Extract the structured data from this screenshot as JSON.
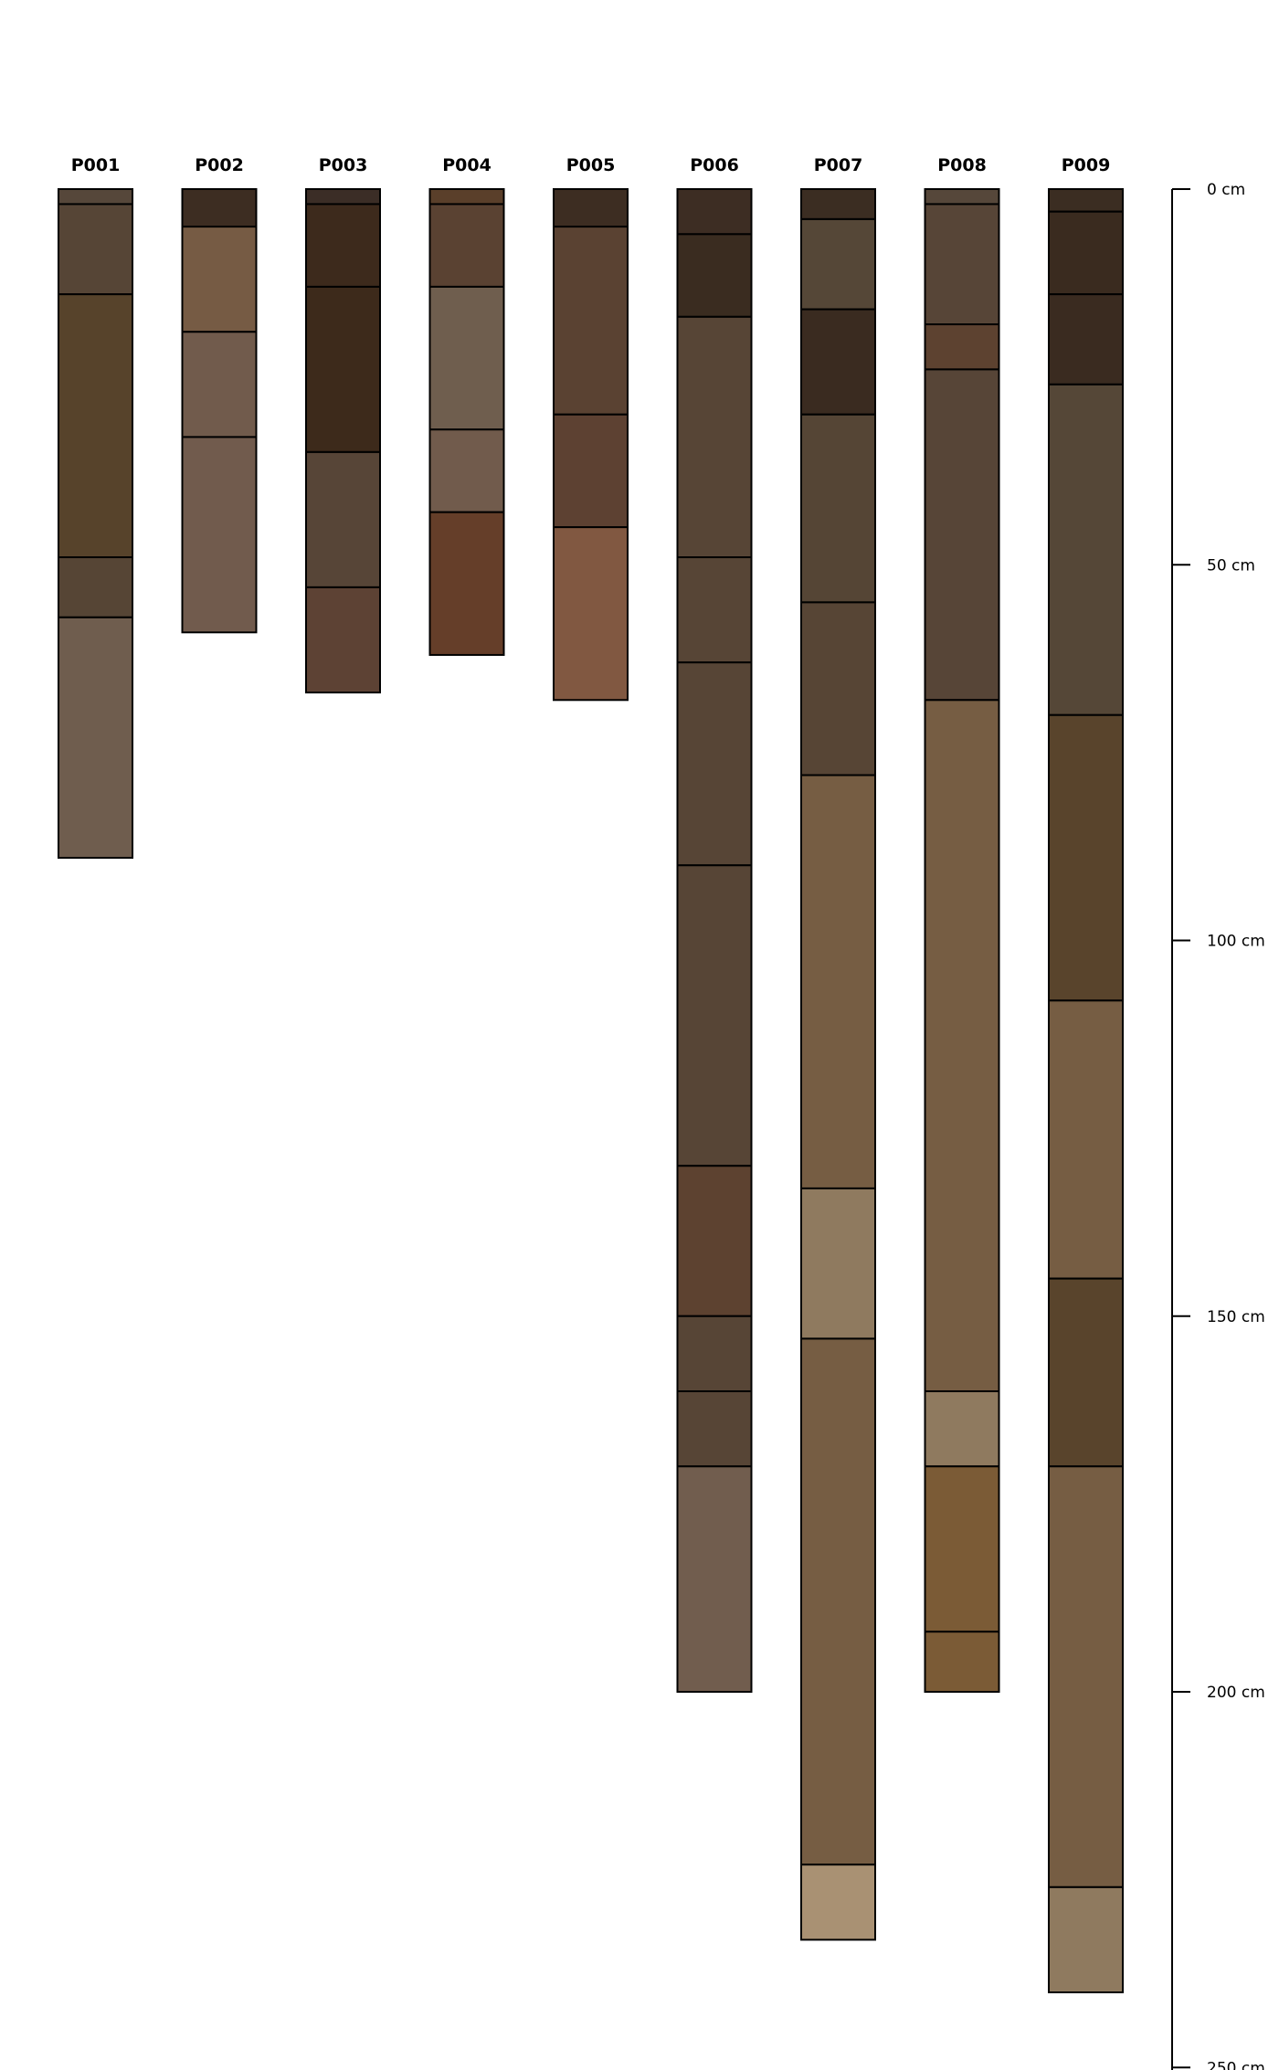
{
  "chart_data": {
    "type": "soil_profile_sketch",
    "depth_unit": "cm",
    "depth_axis": {
      "ticks": [
        0,
        50,
        100,
        150,
        200,
        250
      ],
      "tick_labels": [
        "0 cm",
        "50 cm",
        "100 cm",
        "150 cm",
        "200 cm",
        "250 cm"
      ],
      "range": [
        0,
        250
      ]
    },
    "profiles": [
      {
        "id": "P001",
        "horizons": [
          {
            "top": 0,
            "bottom": 2,
            "color": "#56473a"
          },
          {
            "top": 2,
            "bottom": 14,
            "color": "#564536"
          },
          {
            "top": 14,
            "bottom": 49,
            "color": "#57432b"
          },
          {
            "top": 49,
            "bottom": 57,
            "color": "#564535"
          },
          {
            "top": 57,
            "bottom": 89,
            "color": "#6f5d4e"
          }
        ]
      },
      {
        "id": "P002",
        "horizons": [
          {
            "top": 0,
            "bottom": 5,
            "color": "#3d2d22"
          },
          {
            "top": 5,
            "bottom": 19,
            "color": "#765b44"
          },
          {
            "top": 19,
            "bottom": 33,
            "color": "#715b4c"
          },
          {
            "top": 33,
            "bottom": 59,
            "color": "#715b4d"
          }
        ]
      },
      {
        "id": "P003",
        "horizons": [
          {
            "top": 0,
            "bottom": 2,
            "color": "#3b2d26"
          },
          {
            "top": 2,
            "bottom": 13,
            "color": "#3d2a1c"
          },
          {
            "top": 13,
            "bottom": 35,
            "color": "#3d2a1b"
          },
          {
            "top": 35,
            "bottom": 53,
            "color": "#574537"
          },
          {
            "top": 53,
            "bottom": 67,
            "color": "#5d4234"
          }
        ]
      },
      {
        "id": "P004",
        "horizons": [
          {
            "top": 0,
            "bottom": 2,
            "color": "#5a3f2a"
          },
          {
            "top": 2,
            "bottom": 13,
            "color": "#5a4232"
          },
          {
            "top": 13,
            "bottom": 32,
            "color": "#6f5e4e"
          },
          {
            "top": 32,
            "bottom": 43,
            "color": "#715b4c"
          },
          {
            "top": 43,
            "bottom": 62,
            "color": "#653e29"
          }
        ]
      },
      {
        "id": "P005",
        "horizons": [
          {
            "top": 0,
            "bottom": 5,
            "color": "#3d2d22"
          },
          {
            "top": 5,
            "bottom": 30,
            "color": "#5a4232"
          },
          {
            "top": 30,
            "bottom": 45,
            "color": "#5d4132"
          },
          {
            "top": 45,
            "bottom": 68,
            "color": "#815841"
          }
        ]
      },
      {
        "id": "P006",
        "horizons": [
          {
            "top": 0,
            "bottom": 6,
            "color": "#3d2d23"
          },
          {
            "top": 6,
            "bottom": 17,
            "color": "#3a2c20"
          },
          {
            "top": 17,
            "bottom": 49,
            "color": "#574536"
          },
          {
            "top": 49,
            "bottom": 63,
            "color": "#574536"
          },
          {
            "top": 63,
            "bottom": 90,
            "color": "#574536"
          },
          {
            "top": 90,
            "bottom": 130,
            "color": "#574536"
          },
          {
            "top": 130,
            "bottom": 150,
            "color": "#5d4230"
          },
          {
            "top": 150,
            "bottom": 160,
            "color": "#574536"
          },
          {
            "top": 160,
            "bottom": 170,
            "color": "#574536"
          },
          {
            "top": 170,
            "bottom": 200,
            "color": "#715d4e"
          }
        ]
      },
      {
        "id": "P007",
        "horizons": [
          {
            "top": 0,
            "bottom": 4,
            "color": "#3b2d22"
          },
          {
            "top": 4,
            "bottom": 16,
            "color": "#554737"
          },
          {
            "top": 16,
            "bottom": 30,
            "color": "#3a2b20"
          },
          {
            "top": 30,
            "bottom": 55,
            "color": "#554535"
          },
          {
            "top": 55,
            "bottom": 78,
            "color": "#574535"
          },
          {
            "top": 78,
            "bottom": 133,
            "color": "#765d43"
          },
          {
            "top": 133,
            "bottom": 153,
            "color": "#8f7a5f"
          },
          {
            "top": 153,
            "bottom": 223,
            "color": "#765d43"
          },
          {
            "top": 223,
            "bottom": 233,
            "color": "#a99173"
          }
        ]
      },
      {
        "id": "P008",
        "horizons": [
          {
            "top": 0,
            "bottom": 2,
            "color": "#56473a"
          },
          {
            "top": 2,
            "bottom": 18,
            "color": "#574537"
          },
          {
            "top": 18,
            "bottom": 24,
            "color": "#5d4230"
          },
          {
            "top": 24,
            "bottom": 68,
            "color": "#574537"
          },
          {
            "top": 68,
            "bottom": 160,
            "color": "#765d43"
          },
          {
            "top": 160,
            "bottom": 170,
            "color": "#8f7a5f"
          },
          {
            "top": 170,
            "bottom": 192,
            "color": "#7b5b36"
          },
          {
            "top": 192,
            "bottom": 200,
            "color": "#7b5b36"
          }
        ]
      },
      {
        "id": "P009",
        "horizons": [
          {
            "top": 0,
            "bottom": 3,
            "color": "#3b2d22"
          },
          {
            "top": 3,
            "bottom": 14,
            "color": "#3a2b1f"
          },
          {
            "top": 14,
            "bottom": 26,
            "color": "#3a2b20"
          },
          {
            "top": 26,
            "bottom": 70,
            "color": "#554737"
          },
          {
            "top": 70,
            "bottom": 108,
            "color": "#59442c"
          },
          {
            "top": 108,
            "bottom": 145,
            "color": "#765d43"
          },
          {
            "top": 145,
            "bottom": 170,
            "color": "#59442c"
          },
          {
            "top": 170,
            "bottom": 226,
            "color": "#765d43"
          },
          {
            "top": 226,
            "bottom": 240,
            "color": "#8f7a5f"
          }
        ]
      }
    ]
  }
}
